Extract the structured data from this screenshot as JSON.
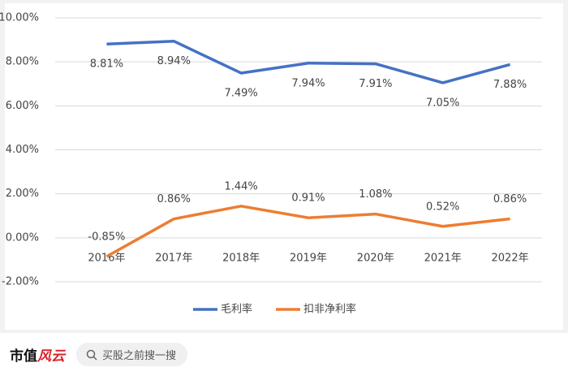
{
  "chart_data": {
    "type": "line",
    "categories": [
      "2016年",
      "2017年",
      "2018年",
      "2019年",
      "2020年",
      "2021年",
      "2022年"
    ],
    "series": [
      {
        "name": "毛利率",
        "color": "#4472c4",
        "values": [
          8.81,
          8.94,
          7.49,
          7.94,
          7.91,
          7.05,
          7.88
        ],
        "value_labels": [
          "8.81%",
          "8.94%",
          "7.49%",
          "7.94%",
          "7.91%",
          "7.05%",
          "7.88%"
        ]
      },
      {
        "name": "扣非净利率",
        "color": "#ed7d31",
        "values": [
          -0.85,
          0.86,
          1.44,
          0.91,
          1.08,
          0.52,
          0.86
        ],
        "value_labels": [
          "-0.85%",
          "0.86%",
          "1.44%",
          "0.91%",
          "1.08%",
          "0.52%",
          "0.86%"
        ]
      }
    ],
    "ylim": [
      -2,
      10
    ],
    "yticks": [
      {
        "value": -2,
        "label": "-2.00%"
      },
      {
        "value": 0,
        "label": "0.00%"
      },
      {
        "value": 2,
        "label": "2.00%"
      },
      {
        "value": 4,
        "label": "4.00%"
      },
      {
        "value": 6,
        "label": "6.00%"
      },
      {
        "value": 8,
        "label": "8.00%"
      },
      {
        "value": 10,
        "label": "10.00%"
      }
    ],
    "grid": true,
    "legend": "bottom"
  },
  "footer": {
    "logo": "市值",
    "logo_mark": "风云",
    "search": "买股之前搜一搜"
  }
}
